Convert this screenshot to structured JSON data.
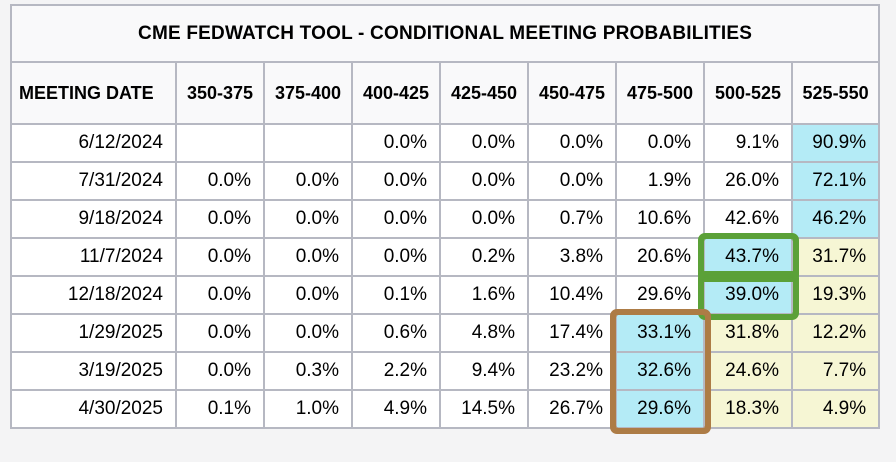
{
  "chart_data": {
    "type": "table",
    "title": "CME FEDWATCH TOOL - CONDITIONAL MEETING PROBABILITIES",
    "columns": [
      "MEETING DATE",
      "350-375",
      "375-400",
      "400-425",
      "425-450",
      "450-475",
      "475-500",
      "500-525",
      "525-550"
    ],
    "rows": [
      {
        "date": "6/12/2024",
        "values": [
          "",
          "",
          "0.0%",
          "0.0%",
          "0.0%",
          "0.0%",
          "9.1%",
          "90.9%"
        ],
        "highlights": {
          "7": "cyan"
        }
      },
      {
        "date": "7/31/2024",
        "values": [
          "0.0%",
          "0.0%",
          "0.0%",
          "0.0%",
          "0.0%",
          "1.9%",
          "26.0%",
          "72.1%"
        ],
        "highlights": {
          "7": "cyan"
        }
      },
      {
        "date": "9/18/2024",
        "values": [
          "0.0%",
          "0.0%",
          "0.0%",
          "0.0%",
          "0.7%",
          "10.6%",
          "42.6%",
          "46.2%"
        ],
        "highlights": {
          "7": "cyan"
        }
      },
      {
        "date": "11/7/2024",
        "values": [
          "0.0%",
          "0.0%",
          "0.0%",
          "0.2%",
          "3.8%",
          "20.6%",
          "43.7%",
          "31.7%"
        ],
        "highlights": {
          "6": "cyan",
          "7": "yellow"
        }
      },
      {
        "date": "12/18/2024",
        "values": [
          "0.0%",
          "0.0%",
          "0.1%",
          "1.6%",
          "10.4%",
          "29.6%",
          "39.0%",
          "19.3%"
        ],
        "highlights": {
          "6": "cyan",
          "7": "yellow"
        }
      },
      {
        "date": "1/29/2025",
        "values": [
          "0.0%",
          "0.0%",
          "0.6%",
          "4.8%",
          "17.4%",
          "33.1%",
          "31.8%",
          "12.2%"
        ],
        "highlights": {
          "5": "cyan",
          "6": "yellow",
          "7": "yellow"
        }
      },
      {
        "date": "3/19/2025",
        "values": [
          "0.0%",
          "0.3%",
          "2.2%",
          "9.4%",
          "23.2%",
          "32.6%",
          "24.6%",
          "7.7%"
        ],
        "highlights": {
          "5": "cyan",
          "6": "yellow",
          "7": "yellow"
        }
      },
      {
        "date": "4/30/2025",
        "values": [
          "0.1%",
          "1.0%",
          "4.9%",
          "14.5%",
          "26.7%",
          "29.6%",
          "18.3%",
          "4.9%"
        ],
        "highlights": {
          "5": "cyan",
          "6": "yellow",
          "7": "yellow"
        }
      }
    ],
    "layout": {
      "grid": "full-borders",
      "highlight_cyan_values": [
        "90.9%",
        "72.1%",
        "46.2%",
        "43.7%",
        "39.0%",
        "33.1%",
        "32.6%",
        "29.6%"
      ]
    }
  },
  "colors": {
    "cyan": "#b4ebf6",
    "yellow": "#f6f6d4",
    "border": "#b6b8c2",
    "panel": "#f9f9fa",
    "annotation_green": "#5ba138",
    "annotation_brown": "#ad7c46"
  },
  "annotations": [
    {
      "name": "green-annotation-box-43-7",
      "color_key": "annotation_green",
      "row_start": 3,
      "row_end": 3,
      "col": 6,
      "boxed_values": [
        "43.7%"
      ]
    },
    {
      "name": "green-annotation-box-39-0",
      "color_key": "annotation_green",
      "row_start": 4,
      "row_end": 4,
      "col": 6,
      "boxed_values": [
        "39.0%"
      ]
    },
    {
      "name": "brown-annotation-box-475-500",
      "color_key": "annotation_brown",
      "row_start": 5,
      "row_end": 7,
      "col": 5,
      "boxed_values": [
        "33.1%",
        "32.6%",
        "29.6%"
      ]
    }
  ]
}
